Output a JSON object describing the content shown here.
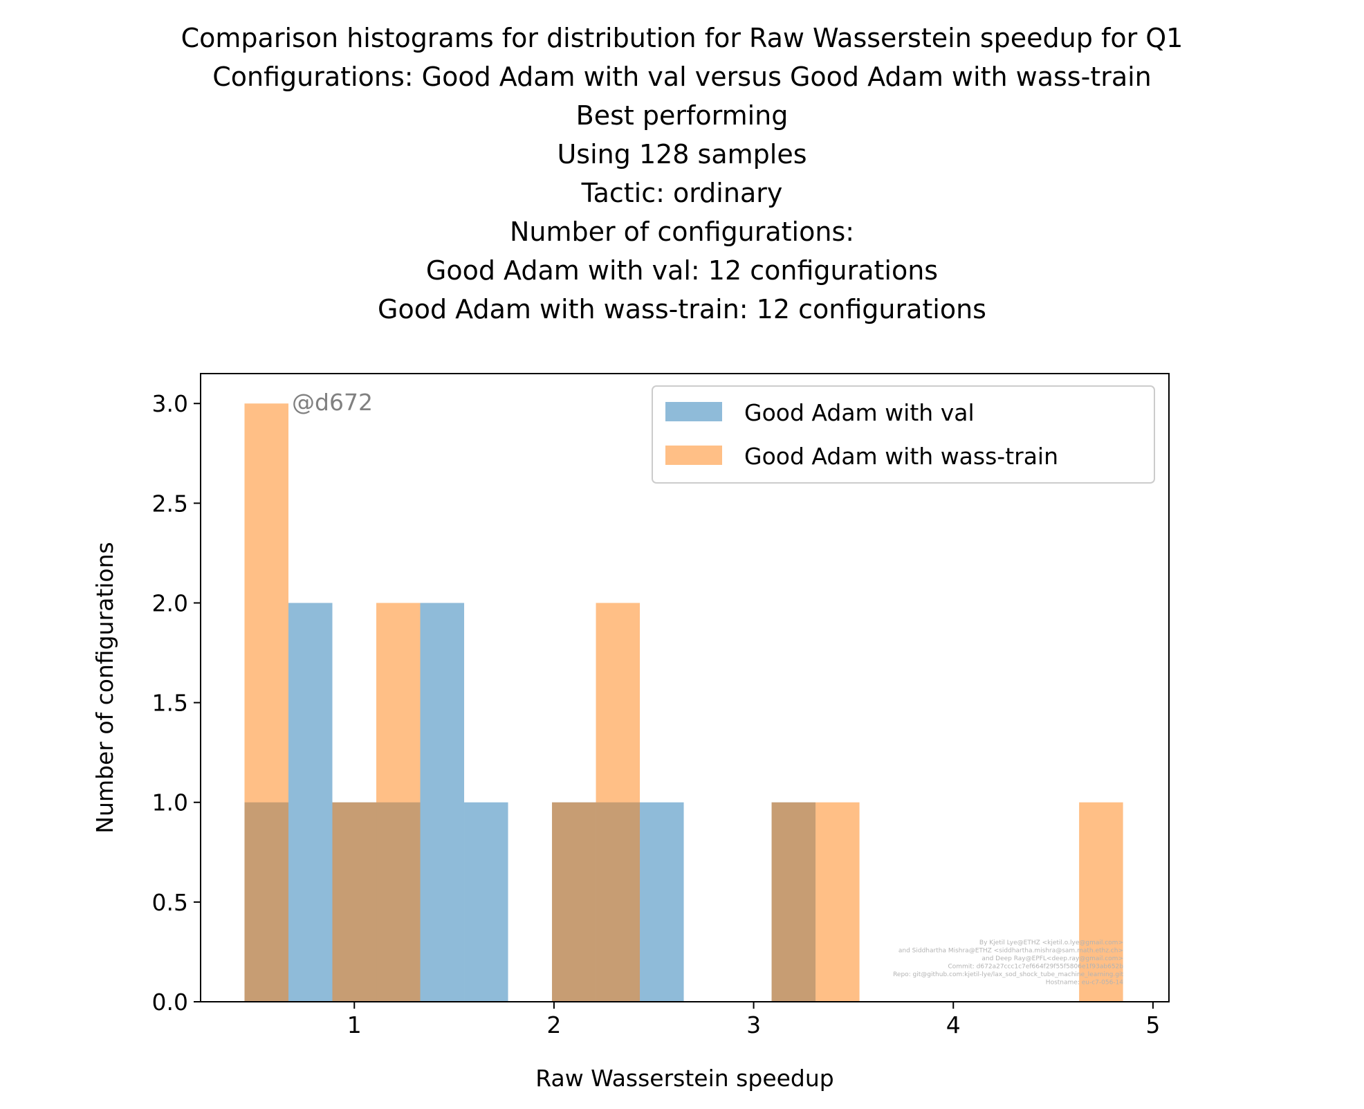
{
  "chart_data": {
    "type": "bar",
    "title_lines": [
      "Comparison histograms for distribution for Raw Wasserstein speedup for Q1",
      "Configurations: Good Adam with val versus Good Adam with wass-train",
      "Best performing",
      "Using 128 samples",
      "Tactic: ordinary",
      "Number of configurations:",
      "Good Adam with val: 12 configurations",
      "Good Adam with wass-train: 12 configurations"
    ],
    "xlabel": "Raw Wasserstein speedup",
    "ylabel": "Number of configurations",
    "xlim": [
      0.23,
      5.08
    ],
    "ylim": [
      0,
      3.15
    ],
    "xticks": [
      1,
      2,
      3,
      4,
      5
    ],
    "xtick_labels": [
      "1",
      "2",
      "3",
      "4",
      "5"
    ],
    "yticks": [
      0,
      0.5,
      1,
      1.5,
      2,
      2.5,
      3
    ],
    "ytick_labels": [
      "0.0",
      "0.5",
      "1.0",
      "1.5",
      "2.0",
      "2.5",
      "3.0"
    ],
    "grid": false,
    "legend_position": "top-right",
    "annotation": "@d672",
    "credits": [
      "By Kjetil Lye@ETHZ <kjetil.o.lye@gmail.com>",
      "and Siddhartha Mishra@ETHZ <siddhartha.mishra@sam.math.ethz.ch>",
      "and Deep Ray@EPFL<deep.ray@gmail.com>",
      "Commit: d672a27ccc1c7ef664f29f55f5806e1f93ab652b",
      "Repo: git@github.com:kjetil-lye/lax_sod_shock_tube_machine_learning.git",
      "Hostname: eu-c7-056-14"
    ],
    "series": [
      {
        "name": "Good Adam with val",
        "color": "#1f77b4",
        "bins": [
          {
            "x0": 0.45,
            "x1": 0.67,
            "count": 1
          },
          {
            "x0": 0.67,
            "x1": 0.89,
            "count": 2
          },
          {
            "x0": 0.89,
            "x1": 1.11,
            "count": 1
          },
          {
            "x0": 1.11,
            "x1": 1.33,
            "count": 1
          },
          {
            "x0": 1.33,
            "x1": 1.55,
            "count": 2
          },
          {
            "x0": 1.55,
            "x1": 1.77,
            "count": 1
          },
          {
            "x0": 1.99,
            "x1": 2.21,
            "count": 1
          },
          {
            "x0": 2.21,
            "x1": 2.43,
            "count": 1
          },
          {
            "x0": 2.43,
            "x1": 2.65,
            "count": 1
          },
          {
            "x0": 3.09,
            "x1": 3.31,
            "count": 1
          }
        ]
      },
      {
        "name": "Good Adam with wass-train",
        "color": "#ff7f0e",
        "bins": [
          {
            "x0": 0.45,
            "x1": 0.67,
            "count": 3
          },
          {
            "x0": 0.89,
            "x1": 1.11,
            "count": 1
          },
          {
            "x0": 1.11,
            "x1": 1.33,
            "count": 2
          },
          {
            "x0": 1.99,
            "x1": 2.21,
            "count": 1
          },
          {
            "x0": 2.21,
            "x1": 2.43,
            "count": 2
          },
          {
            "x0": 3.09,
            "x1": 3.31,
            "count": 1
          },
          {
            "x0": 3.31,
            "x1": 3.53,
            "count": 1
          },
          {
            "x0": 4.63,
            "x1": 4.85,
            "count": 1
          }
        ]
      }
    ]
  }
}
